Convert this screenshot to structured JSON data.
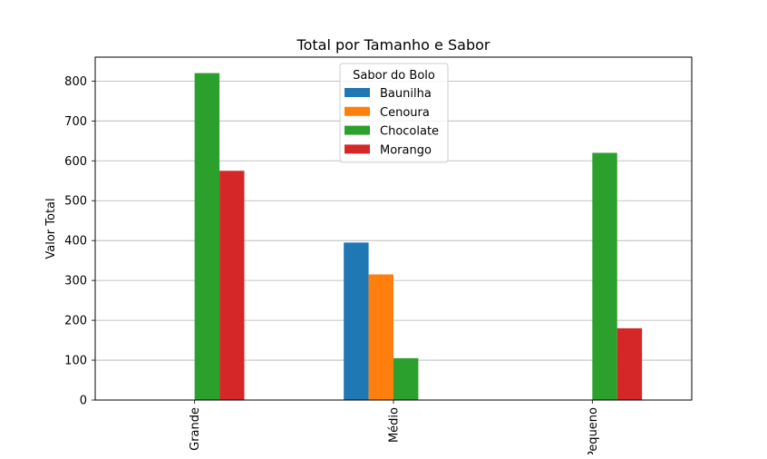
{
  "chart_data": {
    "type": "bar",
    "title": "Total por Tamanho e Sabor",
    "xlabel": "",
    "ylabel": "Valor Total",
    "categories": [
      "Grande",
      "Médio",
      "Pequeno"
    ],
    "series": [
      {
        "name": "Baunilha",
        "color": "#1f77b4",
        "values": [
          0,
          395,
          0
        ]
      },
      {
        "name": "Cenoura",
        "color": "#ff7f0e",
        "values": [
          0,
          315,
          0
        ]
      },
      {
        "name": "Chocolate",
        "color": "#2ca02c",
        "values": [
          820,
          105,
          620
        ]
      },
      {
        "name": "Morango",
        "color": "#d62728",
        "values": [
          575,
          0,
          180
        ]
      }
    ],
    "ylim": [
      0,
      860
    ],
    "yticks": [
      0,
      100,
      200,
      300,
      400,
      500,
      600,
      700,
      800
    ],
    "grid": "horizontal",
    "legend": {
      "title": "Sabor do Bolo",
      "placement": "top-center"
    }
  }
}
